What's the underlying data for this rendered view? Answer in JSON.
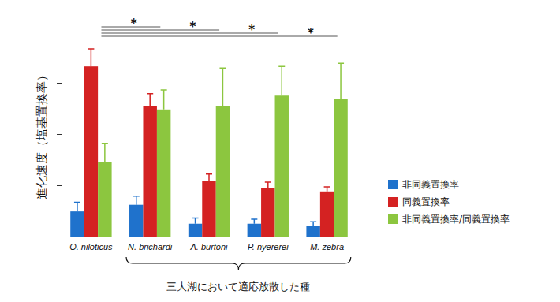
{
  "chart_data": {
    "type": "bar",
    "ylabel": "進化速度（塩基置換率）",
    "categories": [
      "O. niloticus",
      "N. brichardi",
      "A. burtoni",
      "P. nyererei",
      "M. zebra"
    ],
    "series": [
      {
        "name": "非同義置換率",
        "color": "#1f72cc",
        "values": [
          0.49,
          0.62,
          0.25,
          0.25,
          0.2
        ],
        "errors": [
          0.18,
          0.17,
          0.11,
          0.09,
          0.09
        ]
      },
      {
        "name": "同義置換率",
        "color": "#d42222",
        "values": [
          3.32,
          2.54,
          1.08,
          0.95,
          0.88
        ],
        "errors": [
          0.34,
          0.25,
          0.14,
          0.11,
          0.09
        ]
      },
      {
        "name": "非同義置換率/同義置換率",
        "color": "#8cc63f",
        "values": [
          1.45,
          2.48,
          2.54,
          2.75,
          2.69
        ],
        "errors": [
          0.37,
          0.38,
          0.75,
          0.57,
          0.69
        ]
      }
    ],
    "ylim": [
      0,
      4
    ],
    "yticks": [
      0,
      1,
      2,
      3,
      4
    ],
    "tick_labels": "x",
    "legend": "right",
    "significance": [
      {
        "from": "O. niloticus",
        "to": "N. brichardi",
        "text": "*"
      },
      {
        "from": "O. niloticus",
        "to": "A. burtoni",
        "text": "*"
      },
      {
        "from": "O. niloticus",
        "to": "P. nyererei",
        "text": "*"
      },
      {
        "from": "O. niloticus",
        "to": "M. zebra",
        "text": "*"
      }
    ],
    "bracket": {
      "from": "N. brichardi",
      "to": "M. zebra",
      "text": "三大湖において適応放散した種"
    }
  }
}
